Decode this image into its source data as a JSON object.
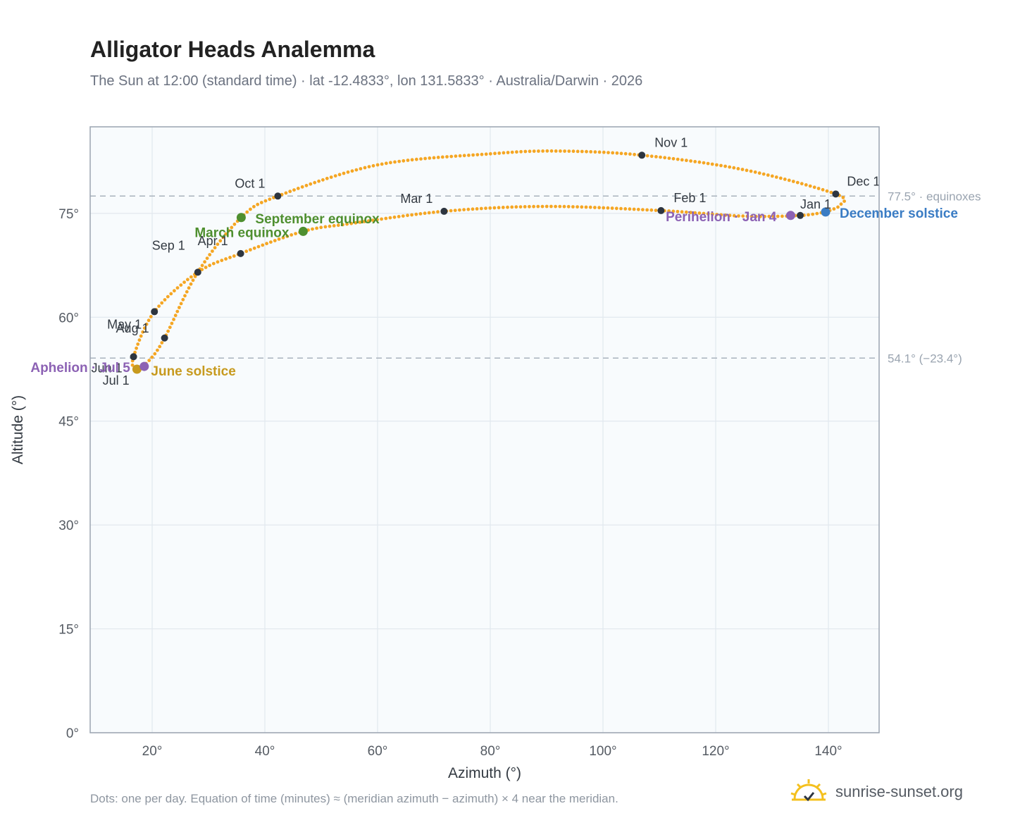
{
  "title": "Alligator Heads Analemma",
  "subtitle": "The Sun at 12:00 (standard time) · lat -12.4833°, lon 131.5833° · Australia/Darwin · 2026",
  "footnote": "Dots: one per day. Equation of time (minutes) ≈ (meridian azimuth − azimuth) × 4 near the meridian.",
  "brand": {
    "name": "sunrise-sunset.org",
    "icon": "sun-logo-icon"
  },
  "colors": {
    "curve": "#f5a623",
    "month_dot": "#2d3540",
    "equinox": "#4e8f2f",
    "june_solstice": "#c79a1e",
    "december_solstice": "#3a7cc4",
    "apsis": "#8c62b4",
    "plot_bg": "#f8fbfd",
    "grid": "#e2e8ee",
    "ref_line": "#a9b3bd"
  },
  "chart_data": {
    "type": "scatter",
    "title": "Alligator Heads Analemma",
    "xlabel": "Azimuth (°)",
    "ylabel": "Altitude (°)",
    "xlim": [
      9,
      149
    ],
    "ylim": [
      0,
      87.5
    ],
    "xticks": [
      "20°",
      "40°",
      "60°",
      "80°",
      "100°",
      "120°",
      "140°"
    ],
    "xtick_values": [
      20,
      40,
      60,
      80,
      100,
      120,
      140
    ],
    "yticks": [
      "0°",
      "15°",
      "30°",
      "45°",
      "60°",
      "75°"
    ],
    "ytick_values": [
      0,
      15,
      30,
      45,
      60,
      75
    ],
    "grid": true,
    "reference_lines": [
      {
        "y": 77.5,
        "label": "77.5° · equinoxes"
      },
      {
        "y": 54.1,
        "label": "54.1° (−23.4°)"
      }
    ],
    "months": [
      {
        "label": "Jan 1",
        "az": 135.0,
        "alt": 74.7
      },
      {
        "label": "Feb 1",
        "az": 110.3,
        "alt": 75.4
      },
      {
        "label": "Mar 1",
        "az": 71.8,
        "alt": 75.3
      },
      {
        "label": "Apr 1",
        "az": 35.7,
        "alt": 69.2
      },
      {
        "label": "May 1",
        "az": 20.4,
        "alt": 60.8
      },
      {
        "label": "Jun 1",
        "az": 16.7,
        "alt": 54.3
      },
      {
        "label": "Jul 1",
        "az": 17.2,
        "alt": 52.5
      },
      {
        "label": "Aug 1",
        "az": 22.2,
        "alt": 57.0
      },
      {
        "label": "Sep 1",
        "az": 28.1,
        "alt": 66.5
      },
      {
        "label": "Oct 1",
        "az": 42.3,
        "alt": 77.5
      },
      {
        "label": "Nov 1",
        "az": 106.9,
        "alt": 83.4
      },
      {
        "label": "Dec 1",
        "az": 141.3,
        "alt": 77.8
      }
    ],
    "events": [
      {
        "label": "March equinox",
        "az": 46.8,
        "alt": 72.4,
        "kind": "equinox"
      },
      {
        "label": "June solstice",
        "az": 17.3,
        "alt": 52.5,
        "kind": "june_solstice"
      },
      {
        "label": "September equinox",
        "az": 35.8,
        "alt": 74.4,
        "kind": "equinox"
      },
      {
        "label": "December solstice",
        "az": 139.5,
        "alt": 75.2,
        "kind": "december_solstice"
      },
      {
        "label": "Perihelion · Jan 4",
        "az": 133.3,
        "alt": 74.7,
        "kind": "apsis"
      },
      {
        "label": "Aphelion · Jul 5",
        "az": 18.6,
        "alt": 52.9,
        "kind": "apsis"
      }
    ],
    "curve_anchors": [
      [
        139.5,
        75.2
      ],
      [
        135.0,
        74.7
      ],
      [
        125.0,
        74.6
      ],
      [
        110.3,
        75.4
      ],
      [
        90.0,
        76.0
      ],
      [
        71.8,
        75.3
      ],
      [
        55.0,
        73.5
      ],
      [
        46.8,
        72.4
      ],
      [
        35.7,
        69.2
      ],
      [
        28.1,
        66.5
      ],
      [
        20.4,
        60.8
      ],
      [
        16.7,
        54.3
      ],
      [
        17.2,
        52.5
      ],
      [
        19.5,
        53.8
      ],
      [
        22.2,
        57.0
      ],
      [
        28.1,
        66.5
      ],
      [
        35.8,
        74.4
      ],
      [
        42.3,
        77.5
      ],
      [
        60.0,
        82.0
      ],
      [
        80.0,
        83.6
      ],
      [
        92.0,
        84.0
      ],
      [
        106.9,
        83.4
      ],
      [
        125.0,
        81.3
      ],
      [
        141.3,
        77.8
      ],
      [
        142.1,
        76.2
      ],
      [
        139.5,
        75.2
      ]
    ]
  }
}
